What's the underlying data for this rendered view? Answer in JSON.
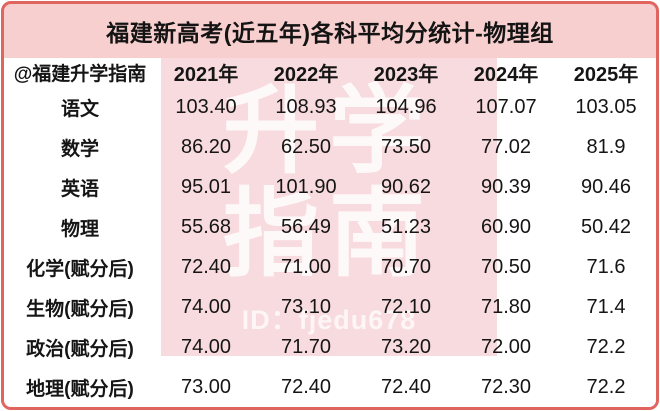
{
  "title": "福建新高考(近五年)各科平均分统计-物理组",
  "table": {
    "corner_label": "@福建升学指南",
    "years": [
      "2021年",
      "2022年",
      "2023年",
      "2024年",
      "2025年"
    ],
    "rows": [
      {
        "subject": "语文",
        "values": [
          "103.40",
          "108.93",
          "104.96",
          "107.07",
          "103.05"
        ]
      },
      {
        "subject": "数学",
        "values": [
          "86.20",
          "62.50",
          "73.50",
          "77.02",
          "81.9"
        ]
      },
      {
        "subject": "英语",
        "values": [
          "95.01",
          "101.90",
          "90.62",
          "90.39",
          "90.46"
        ]
      },
      {
        "subject": "物理",
        "values": [
          "55.68",
          "56.49",
          "51.23",
          "60.90",
          "50.42"
        ]
      },
      {
        "subject": "化学(赋分后)",
        "values": [
          "72.40",
          "71.00",
          "70.70",
          "70.50",
          "71.6"
        ]
      },
      {
        "subject": "生物(赋分后)",
        "values": [
          "74.00",
          "73.10",
          "72.10",
          "71.80",
          "71.4"
        ]
      },
      {
        "subject": "政治(赋分后)",
        "values": [
          "74.00",
          "71.70",
          "73.20",
          "72.00",
          "72.2"
        ]
      },
      {
        "subject": "地理(赋分后)",
        "values": [
          "73.00",
          "72.40",
          "72.40",
          "72.30",
          "72.2"
        ]
      }
    ]
  },
  "watermark": {
    "big_text": "升学\n指南",
    "id_text": "ID：fjedu678"
  },
  "colors": {
    "canvas_pink": "#f8cfcf",
    "border_red": "#e0655e",
    "stamp_pink": "#f8dbde",
    "text_black": "#151515",
    "table_white": "#ffffff"
  },
  "chart_data": {
    "type": "table",
    "title": "福建新高考(近五年)各科平均分统计-物理组",
    "categories": [
      "2021年",
      "2022年",
      "2023年",
      "2024年",
      "2025年"
    ],
    "series": [
      {
        "name": "语文",
        "values": [
          103.4,
          108.93,
          104.96,
          107.07,
          103.05
        ]
      },
      {
        "name": "数学",
        "values": [
          86.2,
          62.5,
          73.5,
          77.02,
          81.9
        ]
      },
      {
        "name": "英语",
        "values": [
          95.01,
          101.9,
          90.62,
          90.39,
          90.46
        ]
      },
      {
        "name": "物理",
        "values": [
          55.68,
          56.49,
          51.23,
          60.9,
          50.42
        ]
      },
      {
        "name": "化学(赋分后)",
        "values": [
          72.4,
          71.0,
          70.7,
          70.5,
          71.6
        ]
      },
      {
        "name": "生物(赋分后)",
        "values": [
          74.0,
          73.1,
          72.1,
          71.8,
          71.4
        ]
      },
      {
        "name": "政治(赋分后)",
        "values": [
          74.0,
          71.7,
          73.2,
          72.0,
          72.2
        ]
      },
      {
        "name": "地理(赋分后)",
        "values": [
          73.0,
          72.4,
          72.4,
          72.3,
          72.2
        ]
      }
    ],
    "legend_position": "none",
    "grid": false
  }
}
